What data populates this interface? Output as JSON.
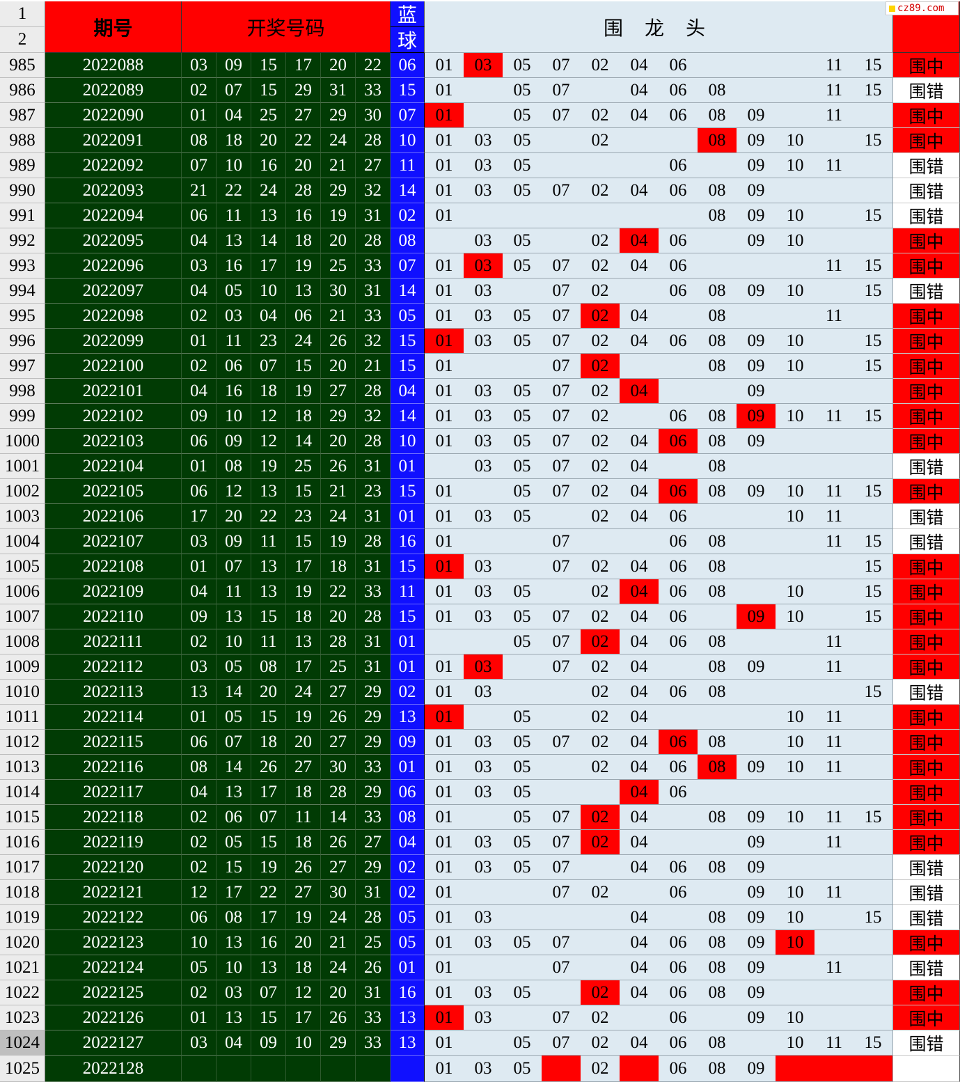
{
  "header": {
    "row_labels": [
      "1",
      "2"
    ],
    "period": "期号",
    "draw_numbers": "开奖号码",
    "blue_top": "蓝",
    "blue_bottom": "球",
    "wei_long_tou": "围 龙 头"
  },
  "watermark": "cz89.com",
  "columns": [
    "01",
    "03",
    "05",
    "07",
    "02",
    "04",
    "06",
    "08",
    "09",
    "10",
    "11",
    "15"
  ],
  "rows": [
    {
      "rn": "985",
      "period": "2022088",
      "reds": [
        "03",
        "09",
        "15",
        "17",
        "20",
        "22"
      ],
      "blue": "06",
      "wl": [
        "01",
        "03",
        "05",
        "07",
        "02",
        "04",
        "06",
        "",
        "",
        "",
        "11",
        "15"
      ],
      "hits": [
        1
      ],
      "result": "围中",
      "result_hit": true
    },
    {
      "rn": "986",
      "period": "2022089",
      "reds": [
        "02",
        "07",
        "15",
        "29",
        "31",
        "33"
      ],
      "blue": "15",
      "wl": [
        "01",
        "",
        "05",
        "07",
        "",
        "04",
        "06",
        "08",
        "",
        "",
        "11",
        "15"
      ],
      "hits": [],
      "result": "围错",
      "result_hit": false
    },
    {
      "rn": "987",
      "period": "2022090",
      "reds": [
        "01",
        "04",
        "25",
        "27",
        "29",
        "30"
      ],
      "blue": "07",
      "wl": [
        "01",
        "",
        "05",
        "07",
        "02",
        "04",
        "06",
        "08",
        "09",
        "",
        "11",
        ""
      ],
      "hits": [
        0
      ],
      "result": "围中",
      "result_hit": true
    },
    {
      "rn": "988",
      "period": "2022091",
      "reds": [
        "08",
        "18",
        "20",
        "22",
        "24",
        "28"
      ],
      "blue": "10",
      "wl": [
        "01",
        "03",
        "05",
        "",
        "02",
        "",
        "",
        "08",
        "09",
        "10",
        "",
        "15"
      ],
      "hits": [
        7
      ],
      "result": "围中",
      "result_hit": true
    },
    {
      "rn": "989",
      "period": "2022092",
      "reds": [
        "07",
        "10",
        "16",
        "20",
        "21",
        "27"
      ],
      "blue": "11",
      "wl": [
        "01",
        "03",
        "05",
        "",
        "",
        "",
        "06",
        "",
        "09",
        "10",
        "11",
        ""
      ],
      "hits": [],
      "result": "围错",
      "result_hit": false
    },
    {
      "rn": "990",
      "period": "2022093",
      "reds": [
        "21",
        "22",
        "24",
        "28",
        "29",
        "32"
      ],
      "blue": "14",
      "wl": [
        "01",
        "03",
        "05",
        "07",
        "02",
        "04",
        "06",
        "08",
        "09",
        "",
        "",
        ""
      ],
      "hits": [],
      "result": "围错",
      "result_hit": false
    },
    {
      "rn": "991",
      "period": "2022094",
      "reds": [
        "06",
        "11",
        "13",
        "16",
        "19",
        "31"
      ],
      "blue": "02",
      "wl": [
        "01",
        "",
        "",
        "",
        "",
        "",
        "",
        "08",
        "09",
        "10",
        "",
        "15"
      ],
      "hits": [],
      "result": "围错",
      "result_hit": false
    },
    {
      "rn": "992",
      "period": "2022095",
      "reds": [
        "04",
        "13",
        "14",
        "18",
        "20",
        "28"
      ],
      "blue": "08",
      "wl": [
        "",
        "03",
        "05",
        "",
        "02",
        "04",
        "06",
        "",
        "09",
        "10",
        "",
        ""
      ],
      "hits": [
        5
      ],
      "result": "围中",
      "result_hit": true
    },
    {
      "rn": "993",
      "period": "2022096",
      "reds": [
        "03",
        "16",
        "17",
        "19",
        "25",
        "33"
      ],
      "blue": "07",
      "wl": [
        "01",
        "03",
        "05",
        "07",
        "02",
        "04",
        "06",
        "",
        "",
        "",
        "11",
        "15"
      ],
      "hits": [
        1
      ],
      "result": "围中",
      "result_hit": true
    },
    {
      "rn": "994",
      "period": "2022097",
      "reds": [
        "04",
        "05",
        "10",
        "13",
        "30",
        "31"
      ],
      "blue": "14",
      "wl": [
        "01",
        "03",
        "",
        "07",
        "02",
        "",
        "06",
        "08",
        "09",
        "10",
        "",
        "15"
      ],
      "hits": [],
      "result": "围错",
      "result_hit": false
    },
    {
      "rn": "995",
      "period": "2022098",
      "reds": [
        "02",
        "03",
        "04",
        "06",
        "21",
        "33"
      ],
      "blue": "05",
      "wl": [
        "01",
        "03",
        "05",
        "07",
        "02",
        "04",
        "",
        "08",
        "",
        "",
        "11",
        ""
      ],
      "hits": [
        4
      ],
      "result": "围中",
      "result_hit": true
    },
    {
      "rn": "996",
      "period": "2022099",
      "reds": [
        "01",
        "11",
        "23",
        "24",
        "26",
        "32"
      ],
      "blue": "15",
      "wl": [
        "01",
        "03",
        "05",
        "07",
        "02",
        "04",
        "06",
        "08",
        "09",
        "10",
        "",
        "15"
      ],
      "hits": [
        0
      ],
      "result": "围中",
      "result_hit": true
    },
    {
      "rn": "997",
      "period": "2022100",
      "reds": [
        "02",
        "06",
        "07",
        "15",
        "20",
        "21"
      ],
      "blue": "15",
      "wl": [
        "01",
        "",
        "",
        "07",
        "02",
        "",
        "",
        "08",
        "09",
        "10",
        "",
        "15"
      ],
      "hits": [
        4
      ],
      "result": "围中",
      "result_hit": true
    },
    {
      "rn": "998",
      "period": "2022101",
      "reds": [
        "04",
        "16",
        "18",
        "19",
        "27",
        "28"
      ],
      "blue": "04",
      "wl": [
        "01",
        "03",
        "05",
        "07",
        "02",
        "04",
        "",
        "",
        "09",
        "",
        "",
        ""
      ],
      "hits": [
        5
      ],
      "result": "围中",
      "result_hit": true
    },
    {
      "rn": "999",
      "period": "2022102",
      "reds": [
        "09",
        "10",
        "12",
        "18",
        "29",
        "32"
      ],
      "blue": "14",
      "wl": [
        "01",
        "03",
        "05",
        "07",
        "02",
        "",
        "06",
        "08",
        "09",
        "10",
        "11",
        "15"
      ],
      "hits": [
        8
      ],
      "result": "围中",
      "result_hit": true
    },
    {
      "rn": "1000",
      "period": "2022103",
      "reds": [
        "06",
        "09",
        "12",
        "14",
        "20",
        "28"
      ],
      "blue": "10",
      "wl": [
        "01",
        "03",
        "05",
        "07",
        "02",
        "04",
        "06",
        "08",
        "09",
        "",
        "",
        ""
      ],
      "hits": [
        6
      ],
      "result": "围中",
      "result_hit": true
    },
    {
      "rn": "1001",
      "period": "2022104",
      "reds": [
        "01",
        "08",
        "19",
        "25",
        "26",
        "31"
      ],
      "blue": "01",
      "wl": [
        "",
        "03",
        "05",
        "07",
        "02",
        "04",
        "",
        "08",
        "",
        "",
        "",
        ""
      ],
      "hits": [],
      "result": "围错",
      "result_hit": false
    },
    {
      "rn": "1002",
      "period": "2022105",
      "reds": [
        "06",
        "12",
        "13",
        "15",
        "21",
        "23"
      ],
      "blue": "15",
      "wl": [
        "01",
        "",
        "05",
        "07",
        "02",
        "04",
        "06",
        "08",
        "09",
        "10",
        "11",
        "15"
      ],
      "hits": [
        6
      ],
      "result": "围中",
      "result_hit": true
    },
    {
      "rn": "1003",
      "period": "2022106",
      "reds": [
        "17",
        "20",
        "22",
        "23",
        "24",
        "31"
      ],
      "blue": "01",
      "wl": [
        "01",
        "03",
        "05",
        "",
        "02",
        "04",
        "06",
        "",
        "",
        "10",
        "11",
        ""
      ],
      "hits": [],
      "result": "围错",
      "result_hit": false
    },
    {
      "rn": "1004",
      "period": "2022107",
      "reds": [
        "03",
        "09",
        "11",
        "15",
        "19",
        "28"
      ],
      "blue": "16",
      "wl": [
        "01",
        "",
        "",
        "07",
        "",
        "",
        "06",
        "08",
        "",
        "",
        "11",
        "15"
      ],
      "hits": [],
      "result": "围错",
      "result_hit": false
    },
    {
      "rn": "1005",
      "period": "2022108",
      "reds": [
        "01",
        "07",
        "13",
        "17",
        "18",
        "31"
      ],
      "blue": "15",
      "wl": [
        "01",
        "03",
        "",
        "07",
        "02",
        "04",
        "06",
        "08",
        "",
        "",
        "",
        "15"
      ],
      "hits": [
        0
      ],
      "result": "围中",
      "result_hit": true
    },
    {
      "rn": "1006",
      "period": "2022109",
      "reds": [
        "04",
        "11",
        "13",
        "19",
        "22",
        "33"
      ],
      "blue": "11",
      "wl": [
        "01",
        "03",
        "05",
        "",
        "02",
        "04",
        "06",
        "08",
        "",
        "10",
        "",
        "15"
      ],
      "hits": [
        5
      ],
      "result": "围中",
      "result_hit": true
    },
    {
      "rn": "1007",
      "period": "2022110",
      "reds": [
        "09",
        "13",
        "15",
        "18",
        "20",
        "28"
      ],
      "blue": "15",
      "wl": [
        "01",
        "03",
        "05",
        "07",
        "02",
        "04",
        "06",
        "",
        "09",
        "10",
        "",
        "15"
      ],
      "hits": [
        8
      ],
      "result": "围中",
      "result_hit": true
    },
    {
      "rn": "1008",
      "period": "2022111",
      "reds": [
        "02",
        "10",
        "11",
        "13",
        "28",
        "31"
      ],
      "blue": "01",
      "wl": [
        "",
        "",
        "05",
        "07",
        "02",
        "04",
        "06",
        "08",
        "",
        "",
        "11",
        ""
      ],
      "hits": [
        4
      ],
      "result": "围中",
      "result_hit": true
    },
    {
      "rn": "1009",
      "period": "2022112",
      "reds": [
        "03",
        "05",
        "08",
        "17",
        "25",
        "31"
      ],
      "blue": "01",
      "wl": [
        "01",
        "03",
        "",
        "07",
        "02",
        "04",
        "",
        "08",
        "09",
        "",
        "11",
        ""
      ],
      "hits": [
        1
      ],
      "result": "围中",
      "result_hit": true
    },
    {
      "rn": "1010",
      "period": "2022113",
      "reds": [
        "13",
        "14",
        "20",
        "24",
        "27",
        "29"
      ],
      "blue": "02",
      "wl": [
        "01",
        "03",
        "",
        "",
        "02",
        "04",
        "06",
        "08",
        "",
        "",
        "",
        "15"
      ],
      "hits": [],
      "result": "围错",
      "result_hit": false
    },
    {
      "rn": "1011",
      "period": "2022114",
      "reds": [
        "01",
        "05",
        "15",
        "19",
        "26",
        "29"
      ],
      "blue": "13",
      "wl": [
        "01",
        "",
        "05",
        "",
        "02",
        "04",
        "",
        "",
        "",
        "10",
        "11",
        ""
      ],
      "hits": [
        0
      ],
      "result": "围中",
      "result_hit": true
    },
    {
      "rn": "1012",
      "period": "2022115",
      "reds": [
        "06",
        "07",
        "18",
        "20",
        "27",
        "29"
      ],
      "blue": "09",
      "wl": [
        "01",
        "03",
        "05",
        "07",
        "02",
        "04",
        "06",
        "08",
        "",
        "10",
        "11",
        ""
      ],
      "hits": [
        6
      ],
      "result": "围中",
      "result_hit": true
    },
    {
      "rn": "1013",
      "period": "2022116",
      "reds": [
        "08",
        "14",
        "26",
        "27",
        "30",
        "33"
      ],
      "blue": "01",
      "wl": [
        "01",
        "03",
        "05",
        "",
        "02",
        "04",
        "06",
        "08",
        "09",
        "10",
        "11",
        ""
      ],
      "hits": [
        7
      ],
      "result": "围中",
      "result_hit": true
    },
    {
      "rn": "1014",
      "period": "2022117",
      "reds": [
        "04",
        "13",
        "17",
        "18",
        "28",
        "29"
      ],
      "blue": "06",
      "wl": [
        "01",
        "03",
        "05",
        "",
        "",
        "04",
        "06",
        "",
        "",
        "",
        "",
        ""
      ],
      "hits": [
        5
      ],
      "result": "围中",
      "result_hit": true
    },
    {
      "rn": "1015",
      "period": "2022118",
      "reds": [
        "02",
        "06",
        "07",
        "11",
        "14",
        "33"
      ],
      "blue": "08",
      "wl": [
        "01",
        "",
        "05",
        "07",
        "02",
        "04",
        "",
        "08",
        "09",
        "10",
        "11",
        "15"
      ],
      "hits": [
        4
      ],
      "result": "围中",
      "result_hit": true
    },
    {
      "rn": "1016",
      "period": "2022119",
      "reds": [
        "02",
        "05",
        "15",
        "18",
        "26",
        "27"
      ],
      "blue": "04",
      "wl": [
        "01",
        "03",
        "05",
        "07",
        "02",
        "04",
        "",
        "",
        "09",
        "",
        "11",
        ""
      ],
      "hits": [
        4
      ],
      "result": "围中",
      "result_hit": true
    },
    {
      "rn": "1017",
      "period": "2022120",
      "reds": [
        "02",
        "15",
        "19",
        "26",
        "27",
        "29"
      ],
      "blue": "02",
      "wl": [
        "01",
        "03",
        "05",
        "07",
        "",
        "04",
        "06",
        "08",
        "09",
        "",
        "",
        ""
      ],
      "hits": [],
      "result": "围错",
      "result_hit": false
    },
    {
      "rn": "1018",
      "period": "2022121",
      "reds": [
        "12",
        "17",
        "22",
        "27",
        "30",
        "31"
      ],
      "blue": "02",
      "wl": [
        "01",
        "",
        "",
        "07",
        "02",
        "",
        "06",
        "",
        "09",
        "10",
        "11",
        ""
      ],
      "hits": [],
      "result": "围错",
      "result_hit": false
    },
    {
      "rn": "1019",
      "period": "2022122",
      "reds": [
        "06",
        "08",
        "17",
        "19",
        "24",
        "28"
      ],
      "blue": "05",
      "wl": [
        "01",
        "03",
        "",
        "",
        "",
        "04",
        "",
        "08",
        "09",
        "10",
        "",
        "15"
      ],
      "hits": [],
      "result": "围错",
      "result_hit": false
    },
    {
      "rn": "1020",
      "period": "2022123",
      "reds": [
        "10",
        "13",
        "16",
        "20",
        "21",
        "25"
      ],
      "blue": "05",
      "wl": [
        "01",
        "03",
        "05",
        "07",
        "",
        "04",
        "06",
        "08",
        "09",
        "10",
        "",
        ""
      ],
      "hits": [
        9
      ],
      "result": "围中",
      "result_hit": true
    },
    {
      "rn": "1021",
      "period": "2022124",
      "reds": [
        "05",
        "10",
        "13",
        "18",
        "24",
        "26"
      ],
      "blue": "01",
      "wl": [
        "01",
        "",
        "",
        "07",
        "",
        "04",
        "06",
        "08",
        "09",
        "",
        "11",
        ""
      ],
      "hits": [],
      "result": "围错",
      "result_hit": false
    },
    {
      "rn": "1022",
      "period": "2022125",
      "reds": [
        "02",
        "03",
        "07",
        "12",
        "20",
        "31"
      ],
      "blue": "16",
      "wl": [
        "01",
        "03",
        "05",
        "",
        "02",
        "04",
        "06",
        "08",
        "09",
        "",
        "",
        ""
      ],
      "hits": [
        4
      ],
      "result": "围中",
      "result_hit": true
    },
    {
      "rn": "1023",
      "period": "2022126",
      "reds": [
        "01",
        "13",
        "15",
        "17",
        "26",
        "33"
      ],
      "blue": "13",
      "wl": [
        "01",
        "03",
        "",
        "07",
        "02",
        "",
        "06",
        "",
        "09",
        "10",
        "",
        ""
      ],
      "hits": [
        0
      ],
      "result": "围中",
      "result_hit": true
    },
    {
      "rn": "1024",
      "period": "2022127",
      "reds": [
        "03",
        "04",
        "09",
        "10",
        "29",
        "33"
      ],
      "blue": "13",
      "wl": [
        "01",
        "",
        "05",
        "07",
        "02",
        "04",
        "06",
        "08",
        "",
        "10",
        "11",
        "15"
      ],
      "hits": [],
      "result": "围错",
      "result_hit": false,
      "selected": true
    },
    {
      "rn": "1025",
      "period": "2022128",
      "reds": [
        "",
        "",
        "",
        "",
        "",
        ""
      ],
      "blue": "",
      "wl": [
        "01",
        "03",
        "05",
        "",
        "02",
        "",
        "06",
        "08",
        "09",
        "",
        "",
        ""
      ],
      "hits": [
        3,
        5,
        9,
        10,
        11
      ],
      "result": "",
      "result_hit": false
    }
  ]
}
